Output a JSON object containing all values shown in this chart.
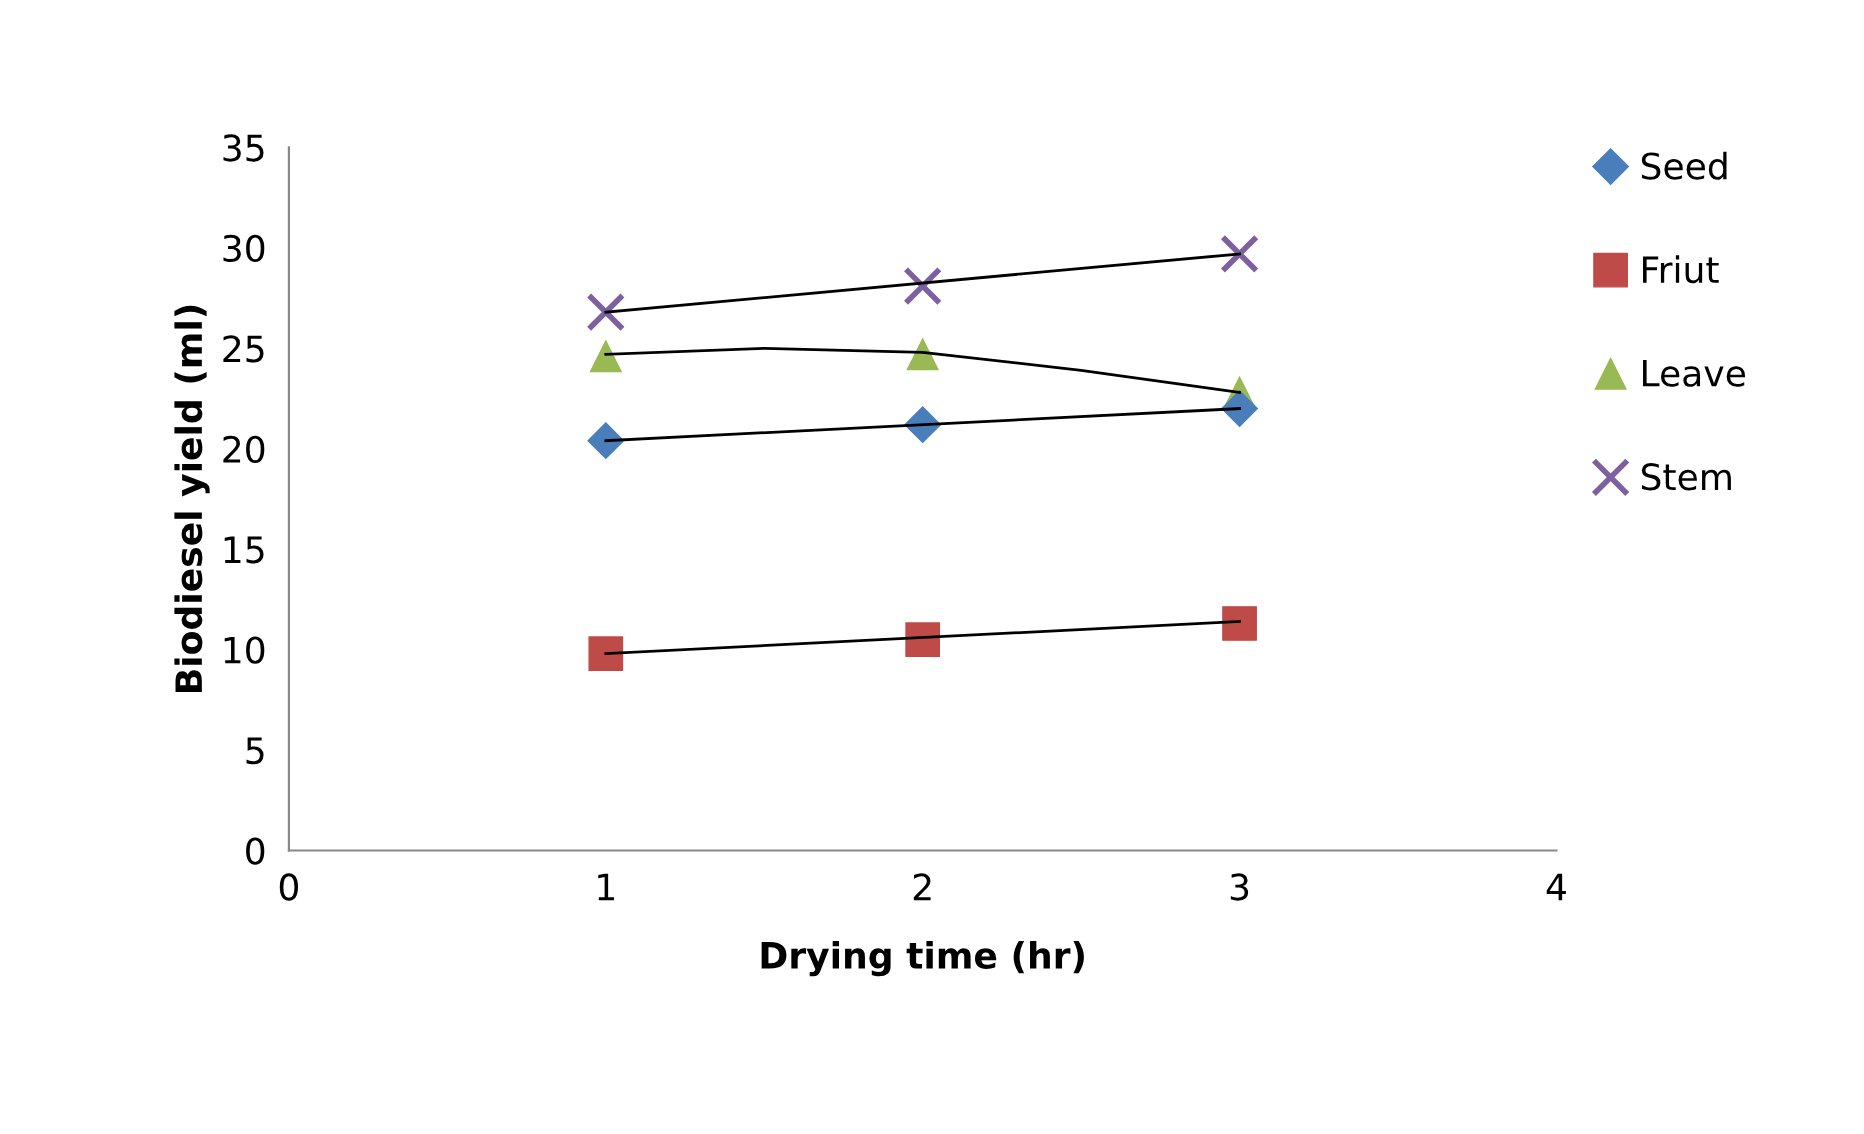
{
  "chart_data": {
    "type": "scatter",
    "xlabel": "Drying time (hr)",
    "ylabel": "Biodiesel yield (ml)",
    "x": [
      1,
      2,
      3
    ],
    "series": [
      {
        "name": "Seed",
        "color": "#4a7ebb",
        "marker": "diamond",
        "values": [
          20.4,
          21.2,
          22.0
        ]
      },
      {
        "name": "Friut",
        "color": "#be4b48",
        "marker": "square",
        "values": [
          9.8,
          10.5,
          11.3
        ]
      },
      {
        "name": "Leave",
        "color": "#98b954",
        "marker": "triangle",
        "values": [
          24.6,
          24.7,
          22.8
        ]
      },
      {
        "name": "Stem",
        "color": "#7d60a0",
        "marker": "cross",
        "values": [
          26.8,
          28.1,
          29.7
        ]
      },
      {
        "type": "line",
        "color": "#000000",
        "x": [
          1,
          3
        ],
        "values": [
          20.4,
          22.0
        ]
      },
      {
        "type": "line",
        "color": "#000000",
        "x": [
          1,
          3
        ],
        "values": [
          9.8,
          11.4
        ]
      },
      {
        "type": "line",
        "color": "#000000",
        "x": [
          1,
          1.5,
          2,
          2.5,
          3
        ],
        "values": [
          24.7,
          25.0,
          24.8,
          23.9,
          22.8
        ]
      },
      {
        "type": "line",
        "color": "#000000",
        "x": [
          1,
          3
        ],
        "values": [
          26.8,
          29.7
        ]
      }
    ],
    "xlim": [
      0,
      4
    ],
    "xticks": [
      0,
      1,
      2,
      3,
      4
    ],
    "ylim": [
      0,
      35
    ],
    "yticks": [
      0,
      5,
      10,
      15,
      20,
      25,
      30,
      35
    ],
    "grid": false,
    "legend": "right"
  }
}
